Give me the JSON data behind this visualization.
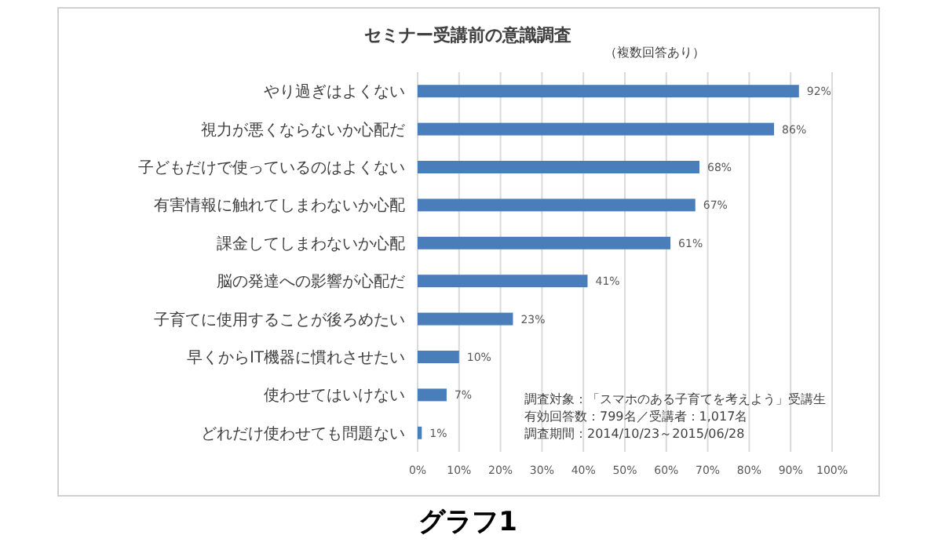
{
  "chart_data": {
    "type": "bar",
    "orientation": "horizontal",
    "title": "セミナー受講前の意識調査",
    "categories": [
      "やり過ぎはよくない",
      "視力が悪くならないか心配だ",
      "子どもだけで使っているのはよくない",
      "有害情報に触れてしまわないか心配",
      "課金してしまわないか心配",
      "脳の発達への影響が心配だ",
      "子育てに使用することが後ろめたい",
      "早くからIT機器に慣れさせたい",
      "使わせてはいけない",
      "どれだけ使わせても問題ない"
    ],
    "values": [
      92,
      86,
      68,
      67,
      61,
      41,
      23,
      10,
      7,
      1
    ],
    "value_labels": [
      "92%",
      "86%",
      "68%",
      "67%",
      "61%",
      "41%",
      "23%",
      "10%",
      "7%",
      "1%"
    ],
    "color": "#4a7ebb",
    "xlim": [
      0,
      100
    ],
    "xticks": [
      {
        "value": 0,
        "label": "0%"
      },
      {
        "value": 10,
        "label": "10%"
      },
      {
        "value": 20,
        "label": "20%"
      },
      {
        "value": 30,
        "label": "30%"
      },
      {
        "value": 40,
        "label": "40%"
      },
      {
        "value": 50,
        "label": "50%"
      },
      {
        "value": 60,
        "label": "60%"
      },
      {
        "value": 70,
        "label": "70%"
      },
      {
        "value": 80,
        "label": "80%"
      },
      {
        "value": 90,
        "label": "90%"
      },
      {
        "value": 100,
        "label": "100%"
      }
    ],
    "grid": "x",
    "annotations": [
      "（複数回答あり）",
      "調査対象：「スマホのある子育てを考えよう」受講生",
      "有効回答数：799名／受講者：1,017名",
      "調査期間：2014/10/23～2015/06/28",
      "グラフ1"
    ]
  }
}
